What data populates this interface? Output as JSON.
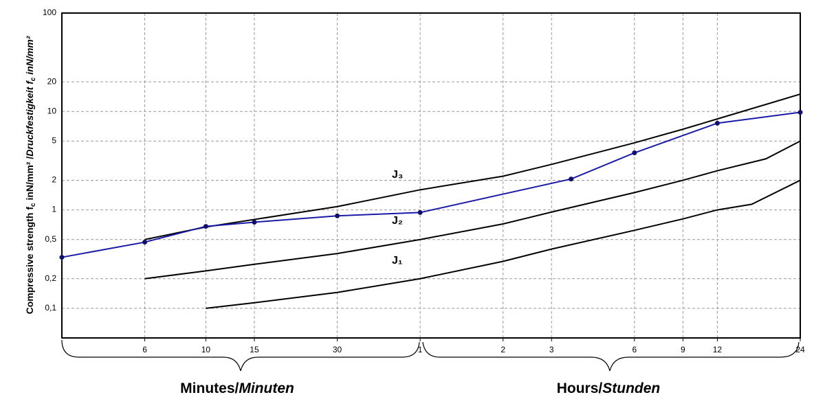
{
  "chart_data": {
    "type": "line",
    "y_label": [
      "Compressive strength f",
      "c",
      " inN/mm² /",
      "Druckfestigkeit f",
      "c",
      " inN/mm²"
    ],
    "x_groups": [
      [
        "Minutes/",
        "Minuten"
      ],
      [
        "Hours/",
        "Stunden"
      ]
    ],
    "x_scale": "log",
    "y_scale": "log",
    "grid": true,
    "xlim": [
      3,
      1440
    ],
    "xticks": [
      6,
      10,
      15,
      30,
      {
        "value": 60,
        "label": "1"
      },
      {
        "value": 120,
        "label": "2"
      },
      {
        "value": 180,
        "label": "3"
      },
      {
        "value": 360,
        "label": "6"
      },
      {
        "value": 540,
        "label": "9"
      },
      {
        "value": 720,
        "label": "12"
      },
      {
        "value": 1440,
        "label": "24"
      }
    ],
    "ylim": [
      0.05,
      100
    ],
    "yticks": [
      {
        "value": 0.1,
        "label": "0,1"
      },
      {
        "value": 0.2,
        "label": "0,2"
      },
      {
        "value": 0.5,
        "label": "0,5"
      },
      1,
      2,
      5,
      10,
      20,
      100
    ],
    "series": [
      {
        "name": "J₁",
        "color": "#000000",
        "x": [
          10,
          15,
          30,
          60,
          120,
          180,
          360,
          540,
          720,
          960,
          1440
        ],
        "values": [
          0.1,
          0.114,
          0.145,
          0.2,
          0.3,
          0.4,
          0.62,
          0.81,
          1.0,
          1.14,
          2
        ]
      },
      {
        "name": "J₂",
        "color": "#000000",
        "x": [
          6,
          10,
          15,
          30,
          60,
          120,
          180,
          360,
          540,
          720,
          1080,
          1440
        ],
        "values": [
          0.2,
          0.24,
          0.28,
          0.36,
          0.5,
          0.72,
          0.95,
          1.5,
          2.0,
          2.5,
          3.3,
          5
        ]
      },
      {
        "name": "J₃",
        "color": "#000000",
        "x": [
          6,
          10,
          30,
          60,
          120,
          180,
          360,
          540,
          720,
          1440
        ],
        "values": [
          0.5,
          0.67,
          1.08,
          1.6,
          2.2,
          2.9,
          4.8,
          6.6,
          8.4,
          15
        ]
      },
      {
        "color": "#1a1aa8",
        "markers": true,
        "x": [
          3,
          6,
          10,
          15,
          30,
          60,
          212,
          360,
          720,
          1440
        ],
        "values": [
          0.33,
          0.47,
          0.68,
          0.75,
          0.87,
          0.94,
          2.06,
          3.8,
          7.6,
          9.8
        ]
      }
    ]
  }
}
